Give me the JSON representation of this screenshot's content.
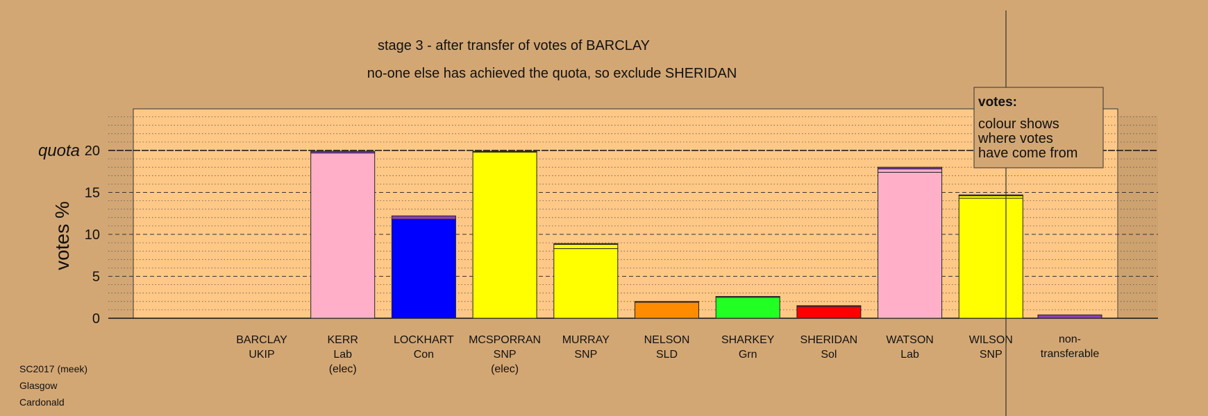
{
  "chart_data": {
    "type": "bar",
    "title": "stage 3 - after transfer of votes of BARCLAY",
    "subtitle": "no-one else has achieved the quota, so exclude SHERIDAN",
    "ylabel": "votes %",
    "ylim": [
      0,
      25
    ],
    "yticks": [
      0,
      5,
      10,
      15,
      20
    ],
    "quota": 20,
    "quota_label": "quota",
    "grid": true,
    "legend": {
      "position": "top-right",
      "title": "votes:",
      "lines": [
        "colour shows",
        "where votes",
        "have come from"
      ]
    },
    "candidates": [
      {
        "name": "BARCLAY",
        "party": "UKIP",
        "note": "",
        "color": "#8b3fb8",
        "segments": [
          {
            "value": 0,
            "color": "#8b3fb8"
          }
        ]
      },
      {
        "name": "KERR",
        "party": "Lab",
        "note": "(elec)",
        "color": "#ffb0c8",
        "segments": [
          {
            "value": 19.7,
            "color": "#ffb0c8"
          },
          {
            "value": 0.2,
            "color": "#8b3fb8"
          }
        ]
      },
      {
        "name": "LOCKHART",
        "party": "Con",
        "note": "",
        "color": "#0000ff",
        "segments": [
          {
            "value": 11.8,
            "color": "#0000ff"
          },
          {
            "value": 0.4,
            "color": "#8b3fb8"
          }
        ]
      },
      {
        "name": "MCSPORRAN",
        "party": "SNP",
        "note": "(elec)",
        "color": "#ffff00",
        "segments": [
          {
            "value": 19.8,
            "color": "#ffff00"
          },
          {
            "value": 0.1,
            "color": "#8b3fb8"
          }
        ]
      },
      {
        "name": "MURRAY",
        "party": "SNP",
        "note": "",
        "color": "#ffff00",
        "segments": [
          {
            "value": 8.3,
            "color": "#ffff00"
          },
          {
            "value": 0.5,
            "color": "#ffff00"
          },
          {
            "value": 0.1,
            "color": "#8b3fb8"
          }
        ]
      },
      {
        "name": "NELSON",
        "party": "SLD",
        "note": "",
        "color": "#ff8c00",
        "segments": [
          {
            "value": 1.9,
            "color": "#ff8c00"
          },
          {
            "value": 0.1,
            "color": "#8b3fb8"
          }
        ]
      },
      {
        "name": "SHARKEY",
        "party": "Grn",
        "note": "",
        "color": "#22ff22",
        "segments": [
          {
            "value": 2.5,
            "color": "#22ff22"
          },
          {
            "value": 0.1,
            "color": "#8b3fb8"
          }
        ]
      },
      {
        "name": "SHERIDAN",
        "party": "Sol",
        "note": "",
        "color": "#ff0000",
        "segments": [
          {
            "value": 1.4,
            "color": "#ff0000"
          },
          {
            "value": 0.1,
            "color": "#8b3fb8"
          }
        ]
      },
      {
        "name": "WATSON",
        "party": "Lab",
        "note": "",
        "color": "#ffb0c8",
        "segments": [
          {
            "value": 17.4,
            "color": "#ffb0c8"
          },
          {
            "value": 0.4,
            "color": "#ffb0c8"
          },
          {
            "value": 0.2,
            "color": "#8b3fb8"
          }
        ]
      },
      {
        "name": "WILSON",
        "party": "SNP",
        "note": "",
        "color": "#ffff00",
        "segments": [
          {
            "value": 14.3,
            "color": "#ffff00"
          },
          {
            "value": 0.3,
            "color": "#ffff00"
          },
          {
            "value": 0.1,
            "color": "#8b3fb8"
          }
        ]
      }
    ],
    "nontransferable": {
      "label_lines": [
        "non-",
        "transferable"
      ],
      "value": 0.4,
      "color": "#8b3fb8"
    },
    "footer": [
      "SC2017 (meek)",
      "Glasgow",
      "Cardonald"
    ]
  }
}
